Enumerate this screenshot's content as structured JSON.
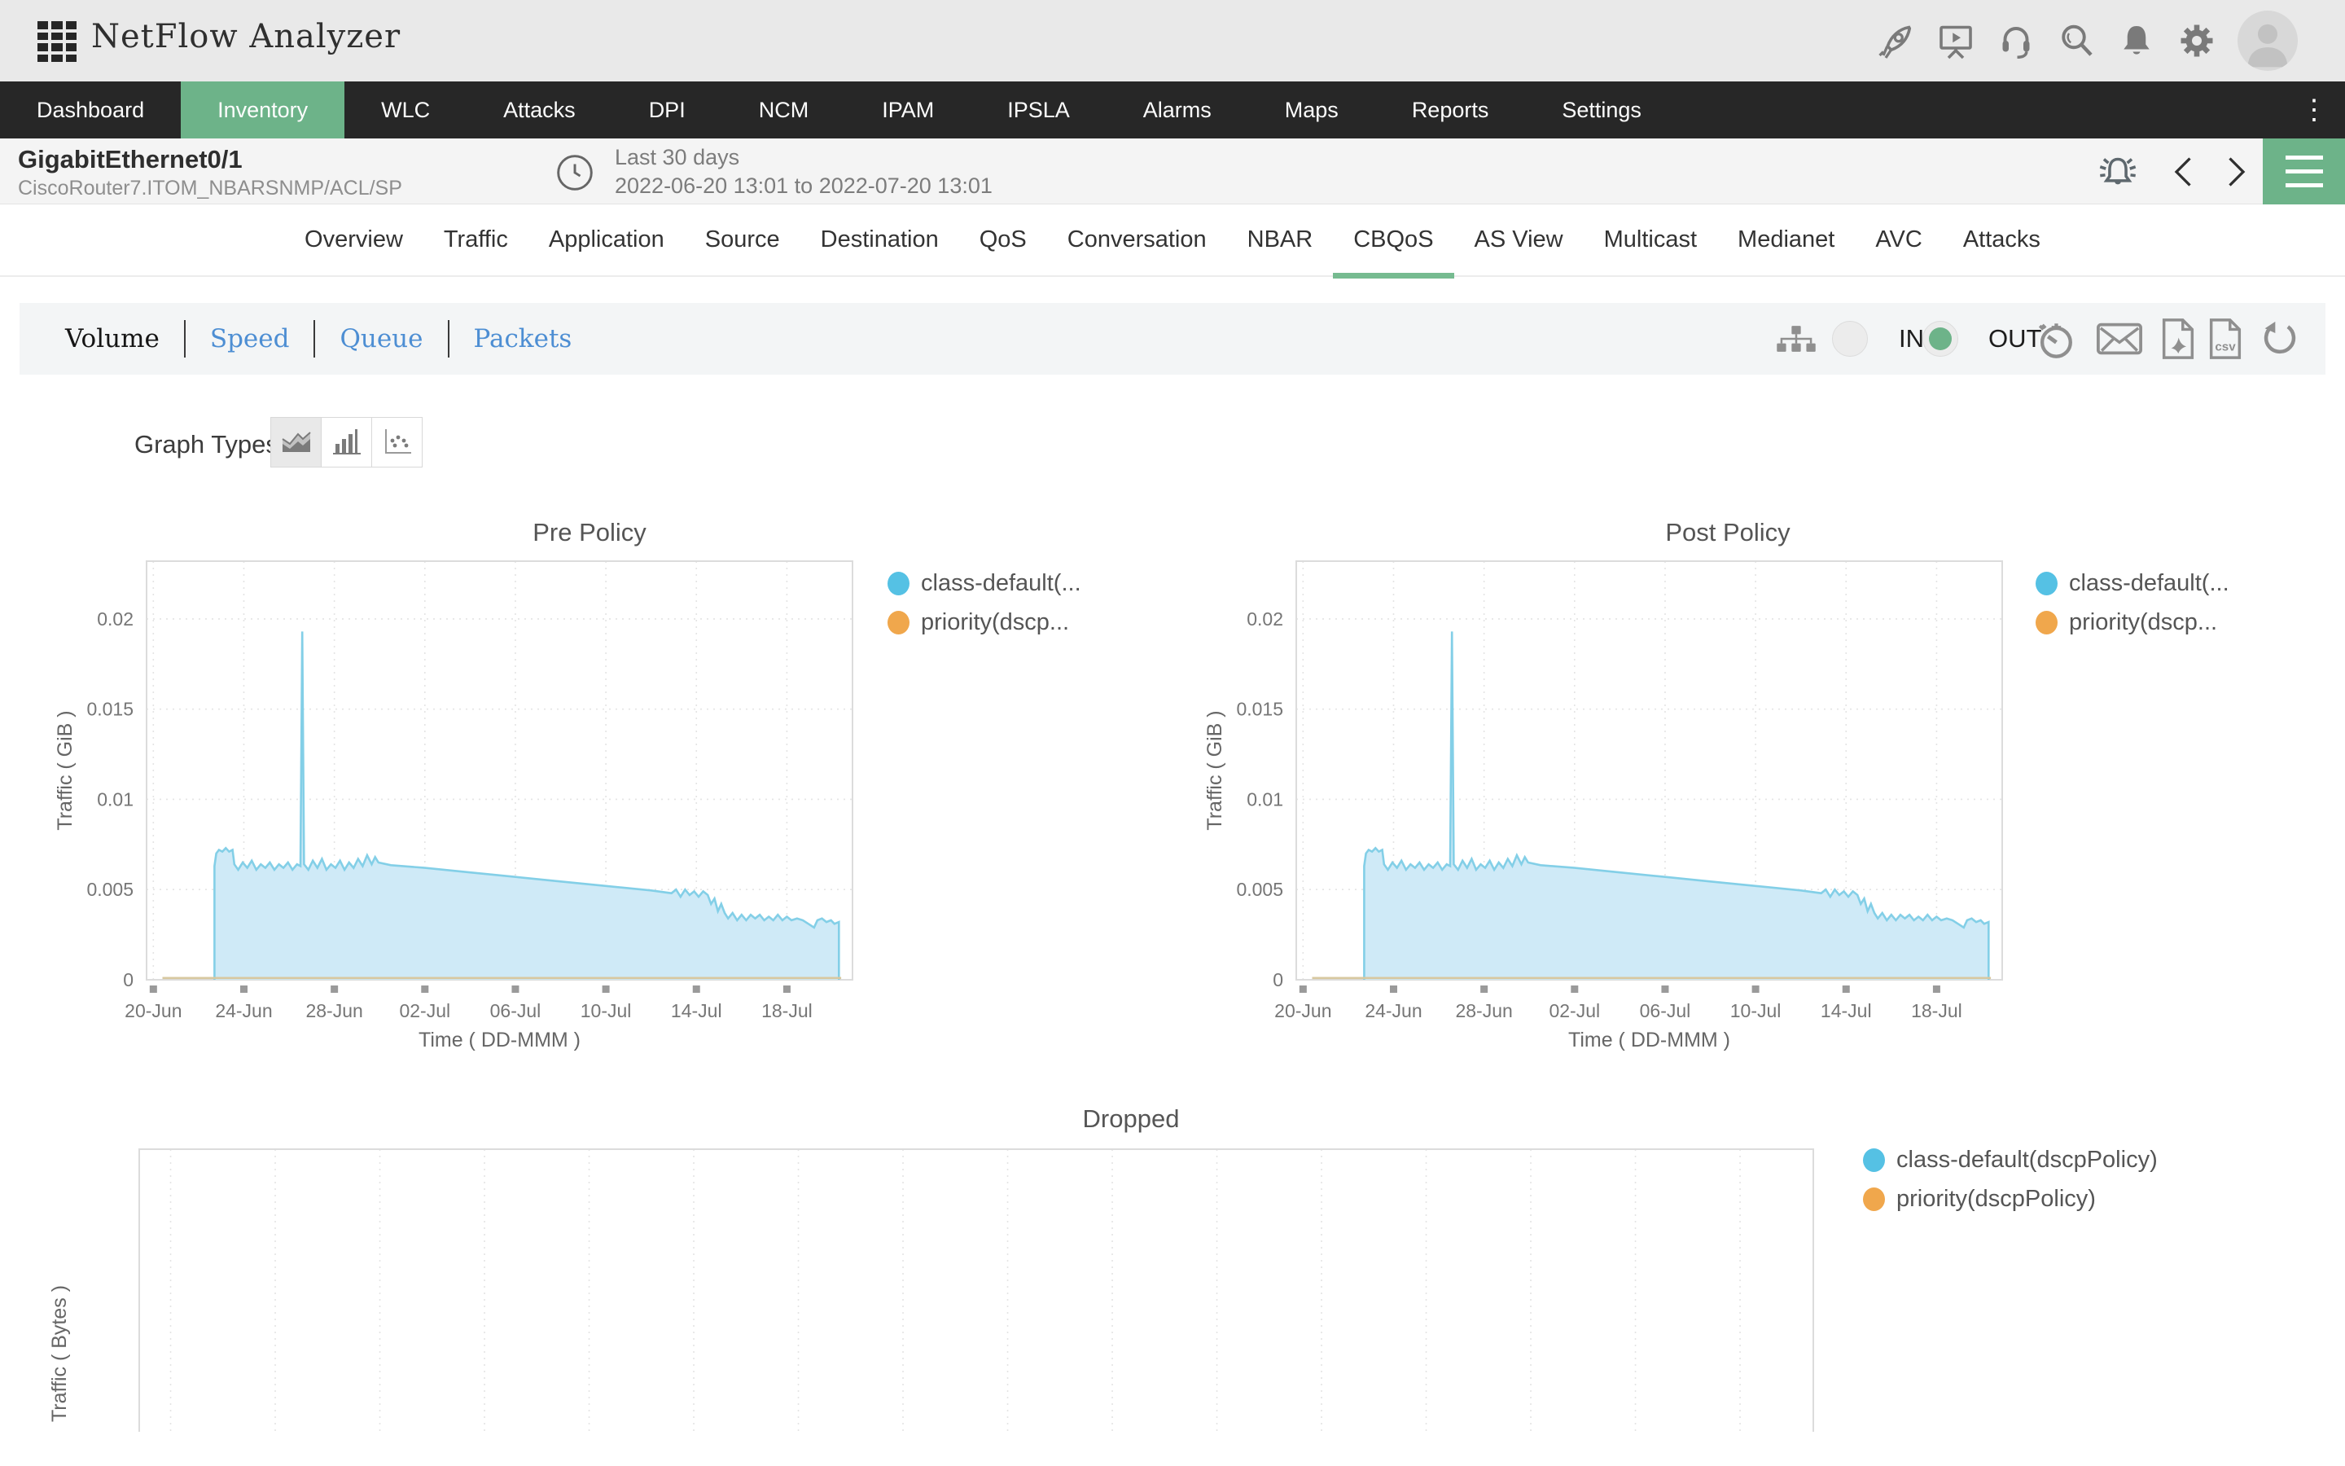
{
  "app": {
    "title": "NetFlow Analyzer"
  },
  "topbar": {
    "icons": [
      "rocket-icon",
      "presentation-play-icon",
      "headset-support-icon",
      "search-icon",
      "notifications-bell-icon",
      "settings-gear-icon",
      "user-avatar"
    ]
  },
  "nav": {
    "items": [
      "Dashboard",
      "Inventory",
      "WLC",
      "Attacks",
      "DPI",
      "NCM",
      "IPAM",
      "IPSLA",
      "Alarms",
      "Maps",
      "Reports",
      "Settings"
    ],
    "active": "Inventory",
    "overflow_icon": "kebab-menu-icon"
  },
  "subheader": {
    "interface_name": "GigabitEthernet0/1",
    "device_name": "CiscoRouter7.ITOM_NBARSNMP/ACL/SP",
    "period_label": "Last 30 days",
    "period_range": "2022-06-20 13:01 to 2022-07-20 13:01",
    "icons": [
      "clock-icon",
      "alarm-bell-icon",
      "chevron-left-icon",
      "chevron-right-icon",
      "hamburger-menu-icon"
    ]
  },
  "tabs": {
    "items": [
      "Overview",
      "Traffic",
      "Application",
      "Source",
      "Destination",
      "QoS",
      "Conversation",
      "NBAR",
      "CBQoS",
      "AS View",
      "Multicast",
      "Medianet",
      "AVC",
      "Attacks"
    ],
    "active": "CBQoS"
  },
  "metric_toolbar": {
    "options": [
      {
        "label": "Volume",
        "active": true
      },
      {
        "label": "Speed",
        "active": false
      },
      {
        "label": "Queue",
        "active": false
      },
      {
        "label": "Packets",
        "active": false
      }
    ],
    "direction": {
      "in_label": "IN",
      "out_label": "OUT",
      "selected": "OUT"
    },
    "action_icons": [
      "sitemap-icon",
      "schedule-timer-icon",
      "email-icon",
      "pdf-export-icon",
      "csv-export-icon",
      "refresh-icon"
    ]
  },
  "graph_types": {
    "label": "Graph Types",
    "options": [
      "area",
      "bar",
      "scatter"
    ],
    "selected": "area"
  },
  "colors": {
    "brand_green": "#6db389",
    "series_blue": "#55c1e4",
    "series_blue_fill": "#cfeaf7",
    "series_blue_line": "#83cfe7",
    "series_orange": "#f0a74c",
    "priority_line": "#d8c8a0",
    "nav_dark": "#272727"
  },
  "chart_series": {
    "class_default_gib": [
      [
        2.7,
        0
      ],
      [
        2.7,
        0.0063
      ],
      [
        2.78,
        0.007
      ],
      [
        2.9,
        0.0072
      ],
      [
        3.05,
        0.0071
      ],
      [
        3.2,
        0.0073
      ],
      [
        3.35,
        0.0071
      ],
      [
        3.5,
        0.0072
      ],
      [
        3.58,
        0.0064
      ],
      [
        3.75,
        0.0061
      ],
      [
        3.95,
        0.0065
      ],
      [
        4.15,
        0.0062
      ],
      [
        4.35,
        0.0066
      ],
      [
        4.55,
        0.0061
      ],
      [
        4.75,
        0.0064
      ],
      [
        4.95,
        0.0062
      ],
      [
        5.15,
        0.0065
      ],
      [
        5.35,
        0.0061
      ],
      [
        5.55,
        0.0064
      ],
      [
        5.75,
        0.0062
      ],
      [
        5.95,
        0.0065
      ],
      [
        6.15,
        0.0061
      ],
      [
        6.35,
        0.0064
      ],
      [
        6.5,
        0.0063
      ],
      [
        6.58,
        0.0193
      ],
      [
        6.66,
        0.0064
      ],
      [
        6.85,
        0.0061
      ],
      [
        7.05,
        0.0066
      ],
      [
        7.25,
        0.0062
      ],
      [
        7.45,
        0.0067
      ],
      [
        7.65,
        0.0061
      ],
      [
        7.85,
        0.0064
      ],
      [
        8.05,
        0.0062
      ],
      [
        8.25,
        0.0066
      ],
      [
        8.45,
        0.0061
      ],
      [
        8.65,
        0.0065
      ],
      [
        8.85,
        0.0062
      ],
      [
        9.05,
        0.0067
      ],
      [
        9.25,
        0.0063
      ],
      [
        9.45,
        0.0069
      ],
      [
        9.65,
        0.0064
      ],
      [
        9.8,
        0.0068
      ],
      [
        9.95,
        0.0065
      ],
      [
        10.5,
        0.00635
      ],
      [
        12,
        0.0062
      ],
      [
        14,
        0.00595
      ],
      [
        16,
        0.0057
      ],
      [
        18,
        0.00545
      ],
      [
        20,
        0.0052
      ],
      [
        22,
        0.00495
      ],
      [
        22.9,
        0.0048
      ],
      [
        23.1,
        0.005
      ],
      [
        23.3,
        0.0046
      ],
      [
        23.5,
        0.005
      ],
      [
        23.7,
        0.0047
      ],
      [
        23.9,
        0.0049
      ],
      [
        24.1,
        0.0046
      ],
      [
        24.3,
        0.0049
      ],
      [
        24.5,
        0.0047
      ],
      [
        24.65,
        0.0042
      ],
      [
        24.8,
        0.0045
      ],
      [
        24.95,
        0.0038
      ],
      [
        25.1,
        0.0042
      ],
      [
        25.25,
        0.0037
      ],
      [
        25.4,
        0.0034
      ],
      [
        25.6,
        0.0037
      ],
      [
        25.8,
        0.0033
      ],
      [
        26,
        0.0036
      ],
      [
        26.2,
        0.0033
      ],
      [
        26.4,
        0.0036
      ],
      [
        26.6,
        0.0034
      ],
      [
        26.8,
        0.0036
      ],
      [
        27,
        0.0033
      ],
      [
        27.2,
        0.0035
      ],
      [
        27.4,
        0.0033
      ],
      [
        27.6,
        0.0036
      ],
      [
        27.8,
        0.0033
      ],
      [
        28,
        0.0035
      ],
      [
        28.2,
        0.0033
      ],
      [
        28.45,
        0.0034
      ],
      [
        28.7,
        0.0033
      ],
      [
        28.95,
        0.0031
      ],
      [
        29.2,
        0.0029
      ],
      [
        29.35,
        0.0033
      ],
      [
        29.55,
        0.0034
      ],
      [
        29.75,
        0.0032
      ],
      [
        29.95,
        0.0033
      ],
      [
        30.1,
        0.0031
      ],
      [
        30.3,
        0.0032
      ],
      [
        30.3,
        0
      ]
    ],
    "priority_gib": [
      [
        0.4,
        0.0001
      ],
      [
        30.4,
        0.0001
      ]
    ]
  },
  "chart_data": [
    {
      "id": "pre_policy",
      "type": "area",
      "title": "Pre Policy",
      "xlabel": "Time ( DD-MMM )",
      "ylabel": "Traffic ( GiB )",
      "x_unit_days_origin": "20-Jun",
      "xlim": [
        -0.3,
        30.9
      ],
      "ylim": [
        0,
        0.0232
      ],
      "x_ticks": [
        {
          "label": "20-Jun",
          "x": 0
        },
        {
          "label": "24-Jun",
          "x": 4
        },
        {
          "label": "28-Jun",
          "x": 8
        },
        {
          "label": "02-Jul",
          "x": 12
        },
        {
          "label": "06-Jul",
          "x": 16
        },
        {
          "label": "10-Jul",
          "x": 20
        },
        {
          "label": "14-Jul",
          "x": 24
        },
        {
          "label": "18-Jul",
          "x": 28
        }
      ],
      "y_ticks": [
        {
          "label": "0",
          "y": 0
        },
        {
          "label": "0.005",
          "y": 0.005
        },
        {
          "label": "0.01",
          "y": 0.01
        },
        {
          "label": "0.015",
          "y": 0.015
        },
        {
          "label": "0.02",
          "y": 0.02
        }
      ],
      "legend": [
        {
          "label": "class-default(...",
          "color": "#55c1e4"
        },
        {
          "label": "priority(dscp...",
          "color": "#f0a74c"
        }
      ],
      "series": [
        {
          "name": "class-default(dscpPolicy)",
          "color": "#83cfe7",
          "fill": "#cfeaf7",
          "points": "class_default_gib"
        },
        {
          "name": "priority(dscpPolicy)",
          "color": "#d8c8a0",
          "fill": "none",
          "points": "priority_gib"
        }
      ]
    },
    {
      "id": "post_policy",
      "type": "area",
      "title": "Post Policy",
      "xlabel": "Time ( DD-MMM )",
      "ylabel": "Traffic ( GiB )",
      "x_unit_days_origin": "20-Jun",
      "xlim": [
        -0.3,
        30.9
      ],
      "ylim": [
        0,
        0.0232
      ],
      "x_ticks": [
        {
          "label": "20-Jun",
          "x": 0
        },
        {
          "label": "24-Jun",
          "x": 4
        },
        {
          "label": "28-Jun",
          "x": 8
        },
        {
          "label": "02-Jul",
          "x": 12
        },
        {
          "label": "06-Jul",
          "x": 16
        },
        {
          "label": "10-Jul",
          "x": 20
        },
        {
          "label": "14-Jul",
          "x": 24
        },
        {
          "label": "18-Jul",
          "x": 28
        }
      ],
      "y_ticks": [
        {
          "label": "0",
          "y": 0
        },
        {
          "label": "0.005",
          "y": 0.005
        },
        {
          "label": "0.01",
          "y": 0.01
        },
        {
          "label": "0.015",
          "y": 0.015
        },
        {
          "label": "0.02",
          "y": 0.02
        }
      ],
      "legend": [
        {
          "label": "class-default(...",
          "color": "#55c1e4"
        },
        {
          "label": "priority(dscp...",
          "color": "#f0a74c"
        }
      ],
      "series": [
        {
          "name": "class-default(dscpPolicy)",
          "color": "#83cfe7",
          "fill": "#cfeaf7",
          "points": "class_default_gib"
        },
        {
          "name": "priority(dscpPolicy)",
          "color": "#d8c8a0",
          "fill": "none",
          "points": "priority_gib"
        }
      ]
    },
    {
      "id": "dropped",
      "type": "area",
      "title": "Dropped",
      "xlabel": "",
      "ylabel": "Traffic ( Bytes )",
      "xlim": [
        -0.3,
        31.7
      ],
      "ylim": [
        0,
        1
      ],
      "x_grid": {
        "start": 0.3,
        "step": 2,
        "end": 31.4
      },
      "x_ticks": [],
      "y_ticks": [],
      "legend": [
        {
          "label": "class-default(dscpPolicy)",
          "color": "#55c1e4"
        },
        {
          "label": "priority(dscpPolicy)",
          "color": "#f0a74c"
        }
      ],
      "series": []
    }
  ]
}
